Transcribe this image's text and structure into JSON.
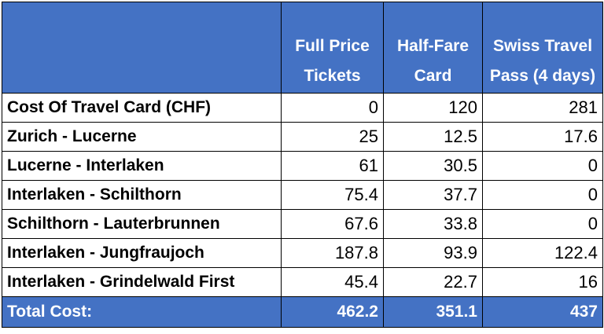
{
  "table": {
    "columns": [
      "Full Price Tickets",
      "Half-Fare Card",
      "Swiss Travel Pass (4 days)"
    ],
    "rows": [
      {
        "label": "Cost Of Travel Card (CHF)",
        "values": [
          0,
          120,
          281
        ]
      },
      {
        "label": "Zurich - Lucerne",
        "values": [
          25,
          12.5,
          17.6
        ]
      },
      {
        "label": "Lucerne - Interlaken",
        "values": [
          61,
          30.5,
          0
        ]
      },
      {
        "label": "Interlaken - Schilthorn",
        "values": [
          75.4,
          37.7,
          0
        ]
      },
      {
        "label": "Schilthorn - Lauterbrunnen",
        "values": [
          67.6,
          33.8,
          0
        ]
      },
      {
        "label": "Interlaken - Jungfraujoch",
        "values": [
          187.8,
          93.9,
          122.4
        ]
      },
      {
        "label": "Interlaken - Grindelwald First",
        "values": [
          45.4,
          22.7,
          16
        ]
      }
    ],
    "total": {
      "label": "Total Cost:",
      "values": [
        462.2,
        351.1,
        437
      ]
    }
  }
}
